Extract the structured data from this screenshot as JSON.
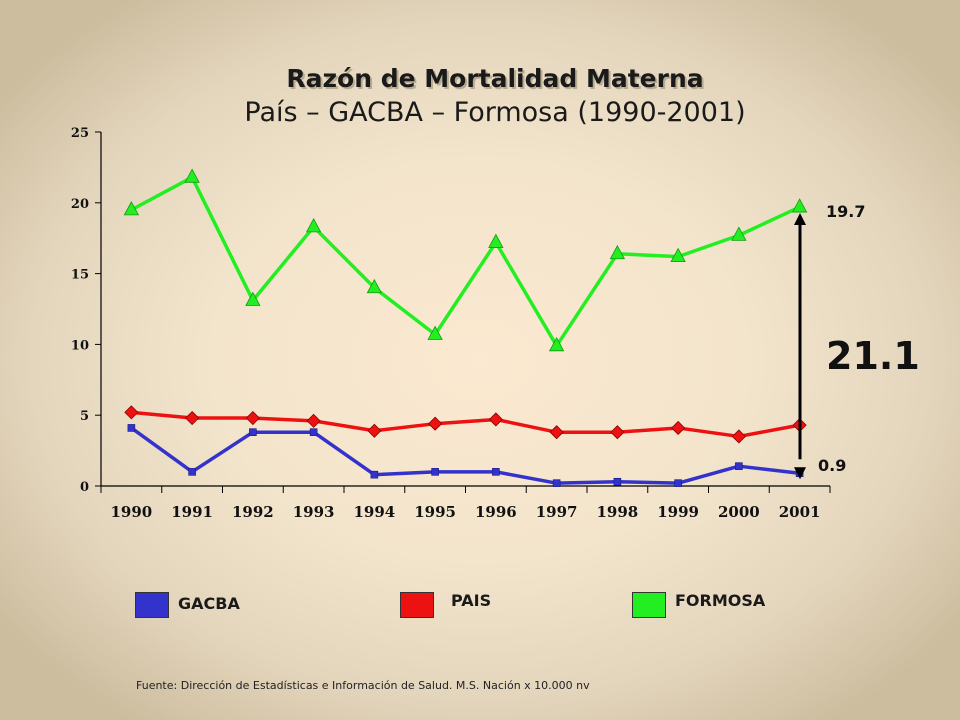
{
  "chart_data": {
    "type": "line",
    "title": "Razón de Mortalidad Materna",
    "subtitle": "País – GACBA – Formosa (1990-2001)",
    "categories": [
      "1990",
      "1991",
      "1992",
      "1993",
      "1994",
      "1995",
      "1996",
      "1997",
      "1998",
      "1999",
      "2000",
      "2001"
    ],
    "ylim": [
      0,
      25
    ],
    "yticks": [
      "0",
      "5",
      "10",
      "15",
      "20",
      "25"
    ],
    "series": [
      {
        "name": "GACBA",
        "color": "#3333cc",
        "marker": "square",
        "values": [
          4.1,
          1.0,
          3.8,
          3.8,
          0.8,
          1.0,
          1.0,
          0.2,
          0.3,
          0.2,
          1.4,
          0.9
        ]
      },
      {
        "name": "PAIS",
        "color": "#ee1111",
        "marker": "diamond",
        "values": [
          5.2,
          4.8,
          4.8,
          4.6,
          3.9,
          4.4,
          4.7,
          3.8,
          3.8,
          4.1,
          3.5,
          4.3
        ]
      },
      {
        "name": "FORMOSA",
        "color": "#22ee22",
        "marker": "triangle",
        "values": [
          19.5,
          21.8,
          13.1,
          18.3,
          14.0,
          10.7,
          17.2,
          9.9,
          16.4,
          16.2,
          17.7,
          19.7
        ]
      }
    ],
    "annotations": {
      "top_value": "19.7",
      "bottom_value": "0.9",
      "ratio": "21.1"
    },
    "legend_position": "bottom",
    "grid": false
  },
  "legend": [
    {
      "label": "GACBA",
      "color": "#3333cc"
    },
    {
      "label": "PAIS",
      "color": "#ee1111"
    },
    {
      "label": "FORMOSA",
      "color": "#22ee22"
    }
  ],
  "source": "Fuente: Dirección de Estadísticas e Información de Salud. M.S. Nación x 10.000 nv"
}
